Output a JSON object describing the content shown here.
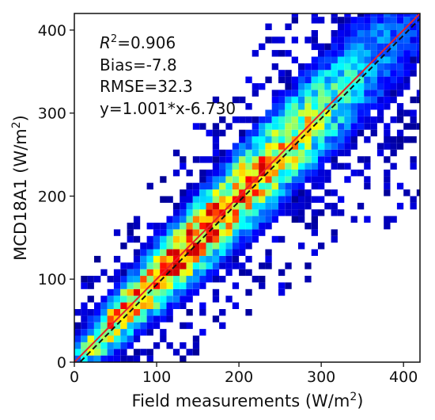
{
  "chart_data": {
    "type": "heatmap",
    "subtype": "density scatter (2D histogram)",
    "xlabel_main": "Field measurements (W/m",
    "xlabel_sup": "2",
    "xlabel_end": ")",
    "ylabel_main": "MCD18A1 (W/m",
    "ylabel_sup": "2",
    "ylabel_end": ")",
    "xlim": [
      0,
      420
    ],
    "ylim": [
      0,
      420
    ],
    "xticks": [
      "0",
      "100",
      "200",
      "300",
      "400"
    ],
    "yticks": [
      "0",
      "100",
      "200",
      "300",
      "400"
    ],
    "grid": false,
    "colormap": "jet",
    "stats": {
      "r2_label": "R",
      "r2_sup": "2",
      "r2_value": "=0.906",
      "bias": "Bias=-7.8",
      "rmse": "RMSE=32.3",
      "fit": "y=1.001*x-6.730"
    },
    "lines": [
      {
        "kind": "one-to-one",
        "slope": 1.0,
        "intercept": 0.0,
        "color": "#e8202a",
        "style": "solid"
      },
      {
        "kind": "regression",
        "slope": 1.001,
        "intercept": -6.73,
        "color": "#111111",
        "style": "dashed"
      }
    ],
    "density": {
      "bin_size": 8,
      "note": "points clustered along the 1:1 line; highest density 20–280 W/m2"
    }
  }
}
